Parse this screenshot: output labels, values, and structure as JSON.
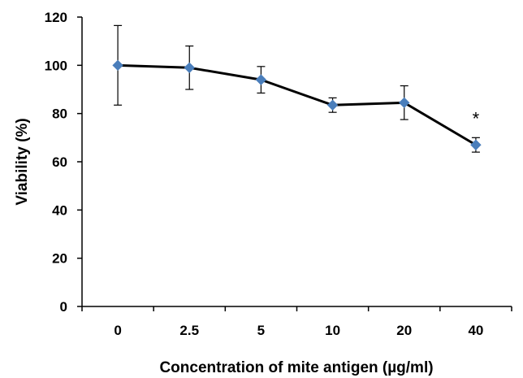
{
  "chart_data": {
    "type": "line",
    "title": "",
    "xlabel": "Concentration of mite antigen (µg/ml)",
    "ylabel": "Viability (%)",
    "categories": [
      "0",
      "2.5",
      "5",
      "10",
      "20",
      "40"
    ],
    "series": [
      {
        "values": [
          100,
          99,
          94,
          83.5,
          84.5,
          67
        ],
        "error": [
          16.5,
          9,
          5.5,
          3,
          7,
          3
        ],
        "color": "#4a7ebb",
        "line_color": "#000000"
      }
    ],
    "ylim": [
      0,
      120
    ],
    "yticks": [
      "0",
      "20",
      "40",
      "60",
      "80",
      "100",
      "120"
    ],
    "annotations": [
      {
        "category": "40",
        "text": "*"
      }
    ],
    "grid": false,
    "legend": "none"
  }
}
